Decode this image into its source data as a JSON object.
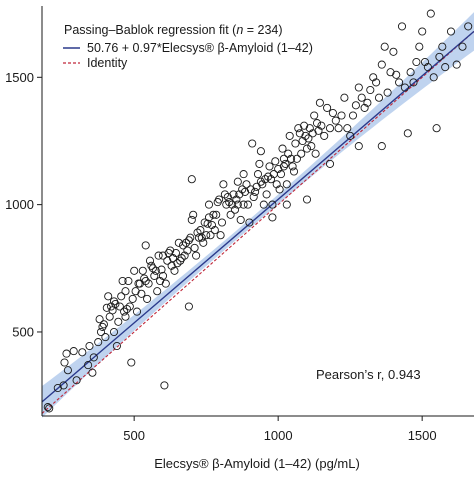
{
  "chart_data": {
    "type": "scatter",
    "title": "",
    "xlabel": "Elecsys® β-Amyloid (1–42) (pg/mL)",
    "ylabel": "",
    "xlim": [
      180,
      1680
    ],
    "ylim": [
      170,
      1780
    ],
    "x_ticks": [
      500,
      1000,
      1500
    ],
    "y_ticks": [
      500,
      1000,
      1500
    ],
    "x_tick_labels": [
      "500",
      "1000",
      "1500"
    ],
    "y_tick_labels": [
      "500",
      "1000",
      "1500"
    ],
    "grid": false,
    "legend_position": "top-left",
    "legend": {
      "title_prefix": "Passing–Bablok regression fit (",
      "title_n": "n",
      "title_suffix": " = 234)",
      "entries": [
        {
          "label": "50.76 + 0.97*Elecsys® β-Amyloid (1–42)",
          "style": "solid",
          "color": "#2b3a8c"
        },
        {
          "label": "Identity",
          "style": "dashed",
          "color": "#c0283a"
        }
      ]
    },
    "annotation": "Pearson’s r, 0.943",
    "regression": {
      "intercept": 50.76,
      "slope": 0.97
    },
    "confidence_band_color": "#a9c4ea",
    "identity_color": "#c0283a",
    "fit_color": "#2b3a8c",
    "points": [
      [
        200,
        205
      ],
      [
        205,
        200
      ],
      [
        235,
        280
      ],
      [
        255,
        290
      ],
      [
        258,
        380
      ],
      [
        265,
        415
      ],
      [
        270,
        350
      ],
      [
        290,
        425
      ],
      [
        300,
        310
      ],
      [
        320,
        420
      ],
      [
        340,
        370
      ],
      [
        345,
        445
      ],
      [
        355,
        340
      ],
      [
        360,
        400
      ],
      [
        375,
        460
      ],
      [
        380,
        550
      ],
      [
        385,
        500
      ],
      [
        390,
        520
      ],
      [
        395,
        530
      ],
      [
        400,
        480
      ],
      [
        405,
        595
      ],
      [
        410,
        640
      ],
      [
        415,
        560
      ],
      [
        420,
        600
      ],
      [
        425,
        585
      ],
      [
        430,
        500
      ],
      [
        435,
        610
      ],
      [
        440,
        445
      ],
      [
        445,
        540
      ],
      [
        450,
        600
      ],
      [
        455,
        640
      ],
      [
        460,
        700
      ],
      [
        465,
        580
      ],
      [
        470,
        560
      ],
      [
        475,
        590
      ],
      [
        480,
        700
      ],
      [
        485,
        600
      ],
      [
        490,
        380
      ],
      [
        495,
        630
      ],
      [
        500,
        740
      ],
      [
        505,
        660
      ],
      [
        510,
        580
      ],
      [
        515,
        690
      ],
      [
        520,
        690
      ],
      [
        525,
        650
      ],
      [
        530,
        740
      ],
      [
        535,
        710
      ],
      [
        540,
        700
      ],
      [
        545,
        630
      ],
      [
        550,
        690
      ],
      [
        555,
        780
      ],
      [
        560,
        760
      ],
      [
        565,
        750
      ],
      [
        570,
        720
      ],
      [
        575,
        740
      ],
      [
        580,
        660
      ],
      [
        585,
        800
      ],
      [
        590,
        700
      ],
      [
        595,
        745
      ],
      [
        600,
        720
      ],
      [
        605,
        290
      ],
      [
        610,
        690
      ],
      [
        615,
        780
      ],
      [
        620,
        810
      ],
      [
        625,
        820
      ],
      [
        630,
        760
      ],
      [
        635,
        790
      ],
      [
        640,
        740
      ],
      [
        645,
        810
      ],
      [
        650,
        770
      ],
      [
        655,
        850
      ],
      [
        660,
        780
      ],
      [
        665,
        790
      ],
      [
        670,
        840
      ],
      [
        675,
        800
      ],
      [
        680,
        850
      ],
      [
        685,
        820
      ],
      [
        690,
        860
      ],
      [
        695,
        870
      ],
      [
        700,
        940
      ],
      [
        705,
        960
      ],
      [
        710,
        830
      ],
      [
        715,
        800
      ],
      [
        720,
        890
      ],
      [
        725,
        870
      ],
      [
        730,
        900
      ],
      [
        735,
        870
      ],
      [
        740,
        850
      ],
      [
        745,
        930
      ],
      [
        750,
        880
      ],
      [
        755,
        925
      ],
      [
        760,
        950
      ],
      [
        765,
        880
      ],
      [
        770,
        920
      ],
      [
        775,
        960
      ],
      [
        780,
        900
      ],
      [
        785,
        960
      ],
      [
        790,
        1010
      ],
      [
        795,
        1020
      ],
      [
        800,
        880
      ],
      [
        805,
        930
      ],
      [
        810,
        1080
      ],
      [
        815,
        1040
      ],
      [
        820,
        1000
      ],
      [
        825,
        1030
      ],
      [
        830,
        1010
      ],
      [
        835,
        960
      ],
      [
        840,
        1000
      ],
      [
        845,
        1040
      ],
      [
        850,
        980
      ],
      [
        855,
        1020
      ],
      [
        860,
        1000
      ],
      [
        865,
        1040
      ],
      [
        870,
        940
      ],
      [
        875,
        1060
      ],
      [
        880,
        1000
      ],
      [
        885,
        1050
      ],
      [
        890,
        1080
      ],
      [
        895,
        1000
      ],
      [
        900,
        930
      ],
      [
        905,
        1060
      ],
      [
        910,
        1240
      ],
      [
        915,
        1030
      ],
      [
        920,
        1050
      ],
      [
        925,
        1070
      ],
      [
        930,
        1120
      ],
      [
        935,
        1160
      ],
      [
        940,
        1090
      ],
      [
        945,
        1080
      ],
      [
        950,
        1000
      ],
      [
        955,
        1100
      ],
      [
        960,
        1040
      ],
      [
        965,
        1110
      ],
      [
        970,
        1150
      ],
      [
        975,
        1100
      ],
      [
        980,
        1000
      ],
      [
        985,
        1120
      ],
      [
        990,
        1170
      ],
      [
        995,
        1080
      ],
      [
        1000,
        1140
      ],
      [
        1005,
        1060
      ],
      [
        1010,
        1120
      ],
      [
        1015,
        1220
      ],
      [
        1020,
        1150
      ],
      [
        1025,
        1160
      ],
      [
        1030,
        1080
      ],
      [
        1035,
        1200
      ],
      [
        1040,
        1270
      ],
      [
        1045,
        1180
      ],
      [
        1050,
        1150
      ],
      [
        1055,
        1130
      ],
      [
        1060,
        1240
      ],
      [
        1065,
        1180
      ],
      [
        1070,
        1300
      ],
      [
        1075,
        1280
      ],
      [
        1080,
        1200
      ],
      [
        1085,
        1250
      ],
      [
        1090,
        1310
      ],
      [
        1095,
        1270
      ],
      [
        1100,
        1220
      ],
      [
        1105,
        1260
      ],
      [
        1110,
        1300
      ],
      [
        1115,
        1230
      ],
      [
        1120,
        1280
      ],
      [
        1125,
        1350
      ],
      [
        1130,
        1200
      ],
      [
        1135,
        1320
      ],
      [
        1140,
        1290
      ],
      [
        1145,
        1400
      ],
      [
        1150,
        1310
      ],
      [
        1160,
        1270
      ],
      [
        1170,
        1380
      ],
      [
        1180,
        1160
      ],
      [
        1190,
        1360
      ],
      [
        1200,
        1330
      ],
      [
        1210,
        1300
      ],
      [
        1220,
        1350
      ],
      [
        1230,
        1420
      ],
      [
        1240,
        1300
      ],
      [
        1250,
        1270
      ],
      [
        1260,
        1350
      ],
      [
        1270,
        1390
      ],
      [
        1280,
        1460
      ],
      [
        1290,
        1420
      ],
      [
        1300,
        1380
      ],
      [
        1310,
        1400
      ],
      [
        1320,
        1450
      ],
      [
        1330,
        1500
      ],
      [
        1340,
        1480
      ],
      [
        1350,
        1420
      ],
      [
        1360,
        1550
      ],
      [
        1370,
        1620
      ],
      [
        1380,
        1440
      ],
      [
        1390,
        1520
      ],
      [
        1400,
        1600
      ],
      [
        1410,
        1510
      ],
      [
        1420,
        1480
      ],
      [
        1430,
        1700
      ],
      [
        1440,
        1460
      ],
      [
        1450,
        1280
      ],
      [
        1460,
        1520
      ],
      [
        1470,
        1480
      ],
      [
        1480,
        1560
      ],
      [
        1490,
        1620
      ],
      [
        1500,
        1680
      ],
      [
        1510,
        1560
      ],
      [
        1520,
        1540
      ],
      [
        1530,
        1750
      ],
      [
        1540,
        1500
      ],
      [
        1550,
        1300
      ],
      [
        1560,
        1580
      ],
      [
        1570,
        1620
      ],
      [
        1580,
        1540
      ],
      [
        1600,
        1680
      ],
      [
        1620,
        1550
      ],
      [
        1640,
        1620
      ],
      [
        1660,
        1700
      ],
      [
        1360,
        1230
      ],
      [
        1280,
        1230
      ],
      [
        1180,
        1300
      ],
      [
        980,
        950
      ],
      [
        1030,
        1000
      ],
      [
        860,
        1090
      ],
      [
        760,
        1000
      ],
      [
        700,
        1100
      ],
      [
        600,
        800
      ],
      [
        540,
        840
      ],
      [
        470,
        660
      ],
      [
        430,
        620
      ],
      [
        1100,
        1020
      ],
      [
        1020,
        1180
      ],
      [
        940,
        1210
      ],
      [
        880,
        1120
      ],
      [
        690,
        600
      ]
    ]
  }
}
